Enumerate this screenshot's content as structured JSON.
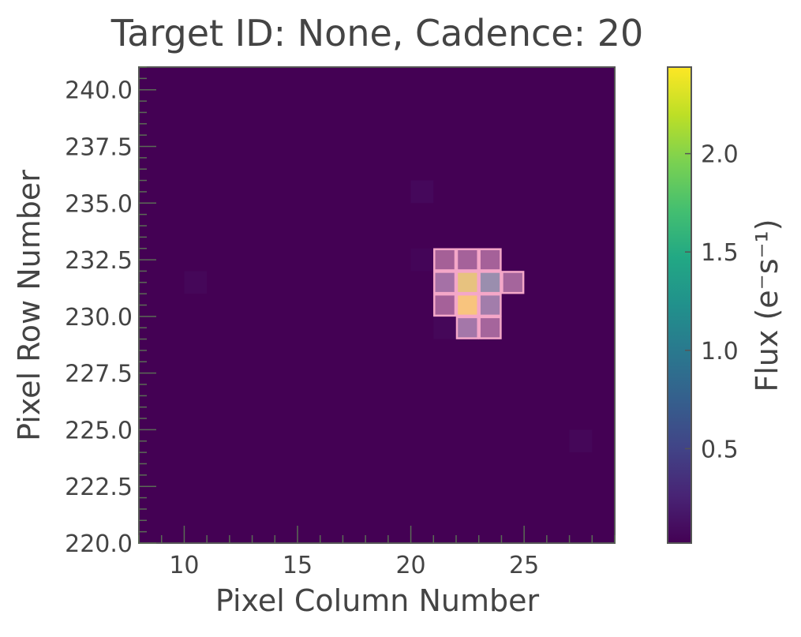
{
  "chart_data": {
    "type": "heatmap",
    "title": "Target ID: None, Cadence: 20",
    "xlabel": "Pixel Column Number",
    "ylabel": "Pixel Row Number",
    "xlim": [
      8,
      29
    ],
    "ylim": [
      220,
      241
    ],
    "x_ticks": [
      10,
      15,
      20,
      25
    ],
    "x_tick_labels": [
      "10",
      "15",
      "20",
      "25"
    ],
    "y_ticks": [
      220.0,
      222.5,
      225.0,
      227.5,
      230.0,
      232.5,
      235.0,
      237.5,
      240.0
    ],
    "y_tick_labels": [
      "220.0",
      "222.5",
      "225.0",
      "227.5",
      "230.0",
      "232.5",
      "235.0",
      "237.5",
      "240.0"
    ],
    "colormap": "viridis",
    "background_flux": 0.02,
    "colorbar": {
      "label": "Flux (e⁻s⁻¹)",
      "range": [
        0.02,
        2.44
      ],
      "ticks": [
        0.5,
        1.0,
        1.5,
        2.0
      ],
      "tick_labels": [
        "0.5",
        "1.0",
        "1.5",
        "2.0"
      ]
    },
    "pixels": [
      {
        "col": 21,
        "row": 232,
        "flux": 0.08
      },
      {
        "col": 22,
        "row": 232,
        "flux": 0.12
      },
      {
        "col": 23,
        "row": 232,
        "flux": 0.1
      },
      {
        "col": 20,
        "row": 232,
        "flux": 0.05
      },
      {
        "col": 21,
        "row": 231,
        "flux": 0.35
      },
      {
        "col": 22,
        "row": 231,
        "flux": 2.3
      },
      {
        "col": 23,
        "row": 231,
        "flux": 0.9
      },
      {
        "col": 24,
        "row": 231,
        "flux": 0.15
      },
      {
        "col": 21,
        "row": 230,
        "flux": 0.1
      },
      {
        "col": 22,
        "row": 230,
        "flux": 2.44
      },
      {
        "col": 23,
        "row": 230,
        "flux": 0.55
      },
      {
        "col": 21,
        "row": 229,
        "flux": 0.06
      },
      {
        "col": 22,
        "row": 229,
        "flux": 0.45
      },
      {
        "col": 23,
        "row": 229,
        "flux": 0.15
      },
      {
        "col": 20,
        "row": 235,
        "flux": 0.07
      },
      {
        "col": 10,
        "row": 231,
        "flux": 0.06
      },
      {
        "col": 27,
        "row": 224,
        "flux": 0.06
      }
    ],
    "aperture": [
      {
        "col": 21,
        "row": 232
      },
      {
        "col": 22,
        "row": 232
      },
      {
        "col": 23,
        "row": 232
      },
      {
        "col": 21,
        "row": 231
      },
      {
        "col": 22,
        "row": 231
      },
      {
        "col": 23,
        "row": 231
      },
      {
        "col": 24,
        "row": 231
      },
      {
        "col": 21,
        "row": 230
      },
      {
        "col": 22,
        "row": 230
      },
      {
        "col": 23,
        "row": 230
      },
      {
        "col": 22,
        "row": 229
      },
      {
        "col": 23,
        "row": 229
      }
    ],
    "aperture_color": "#f4a7c8",
    "grid": false
  }
}
